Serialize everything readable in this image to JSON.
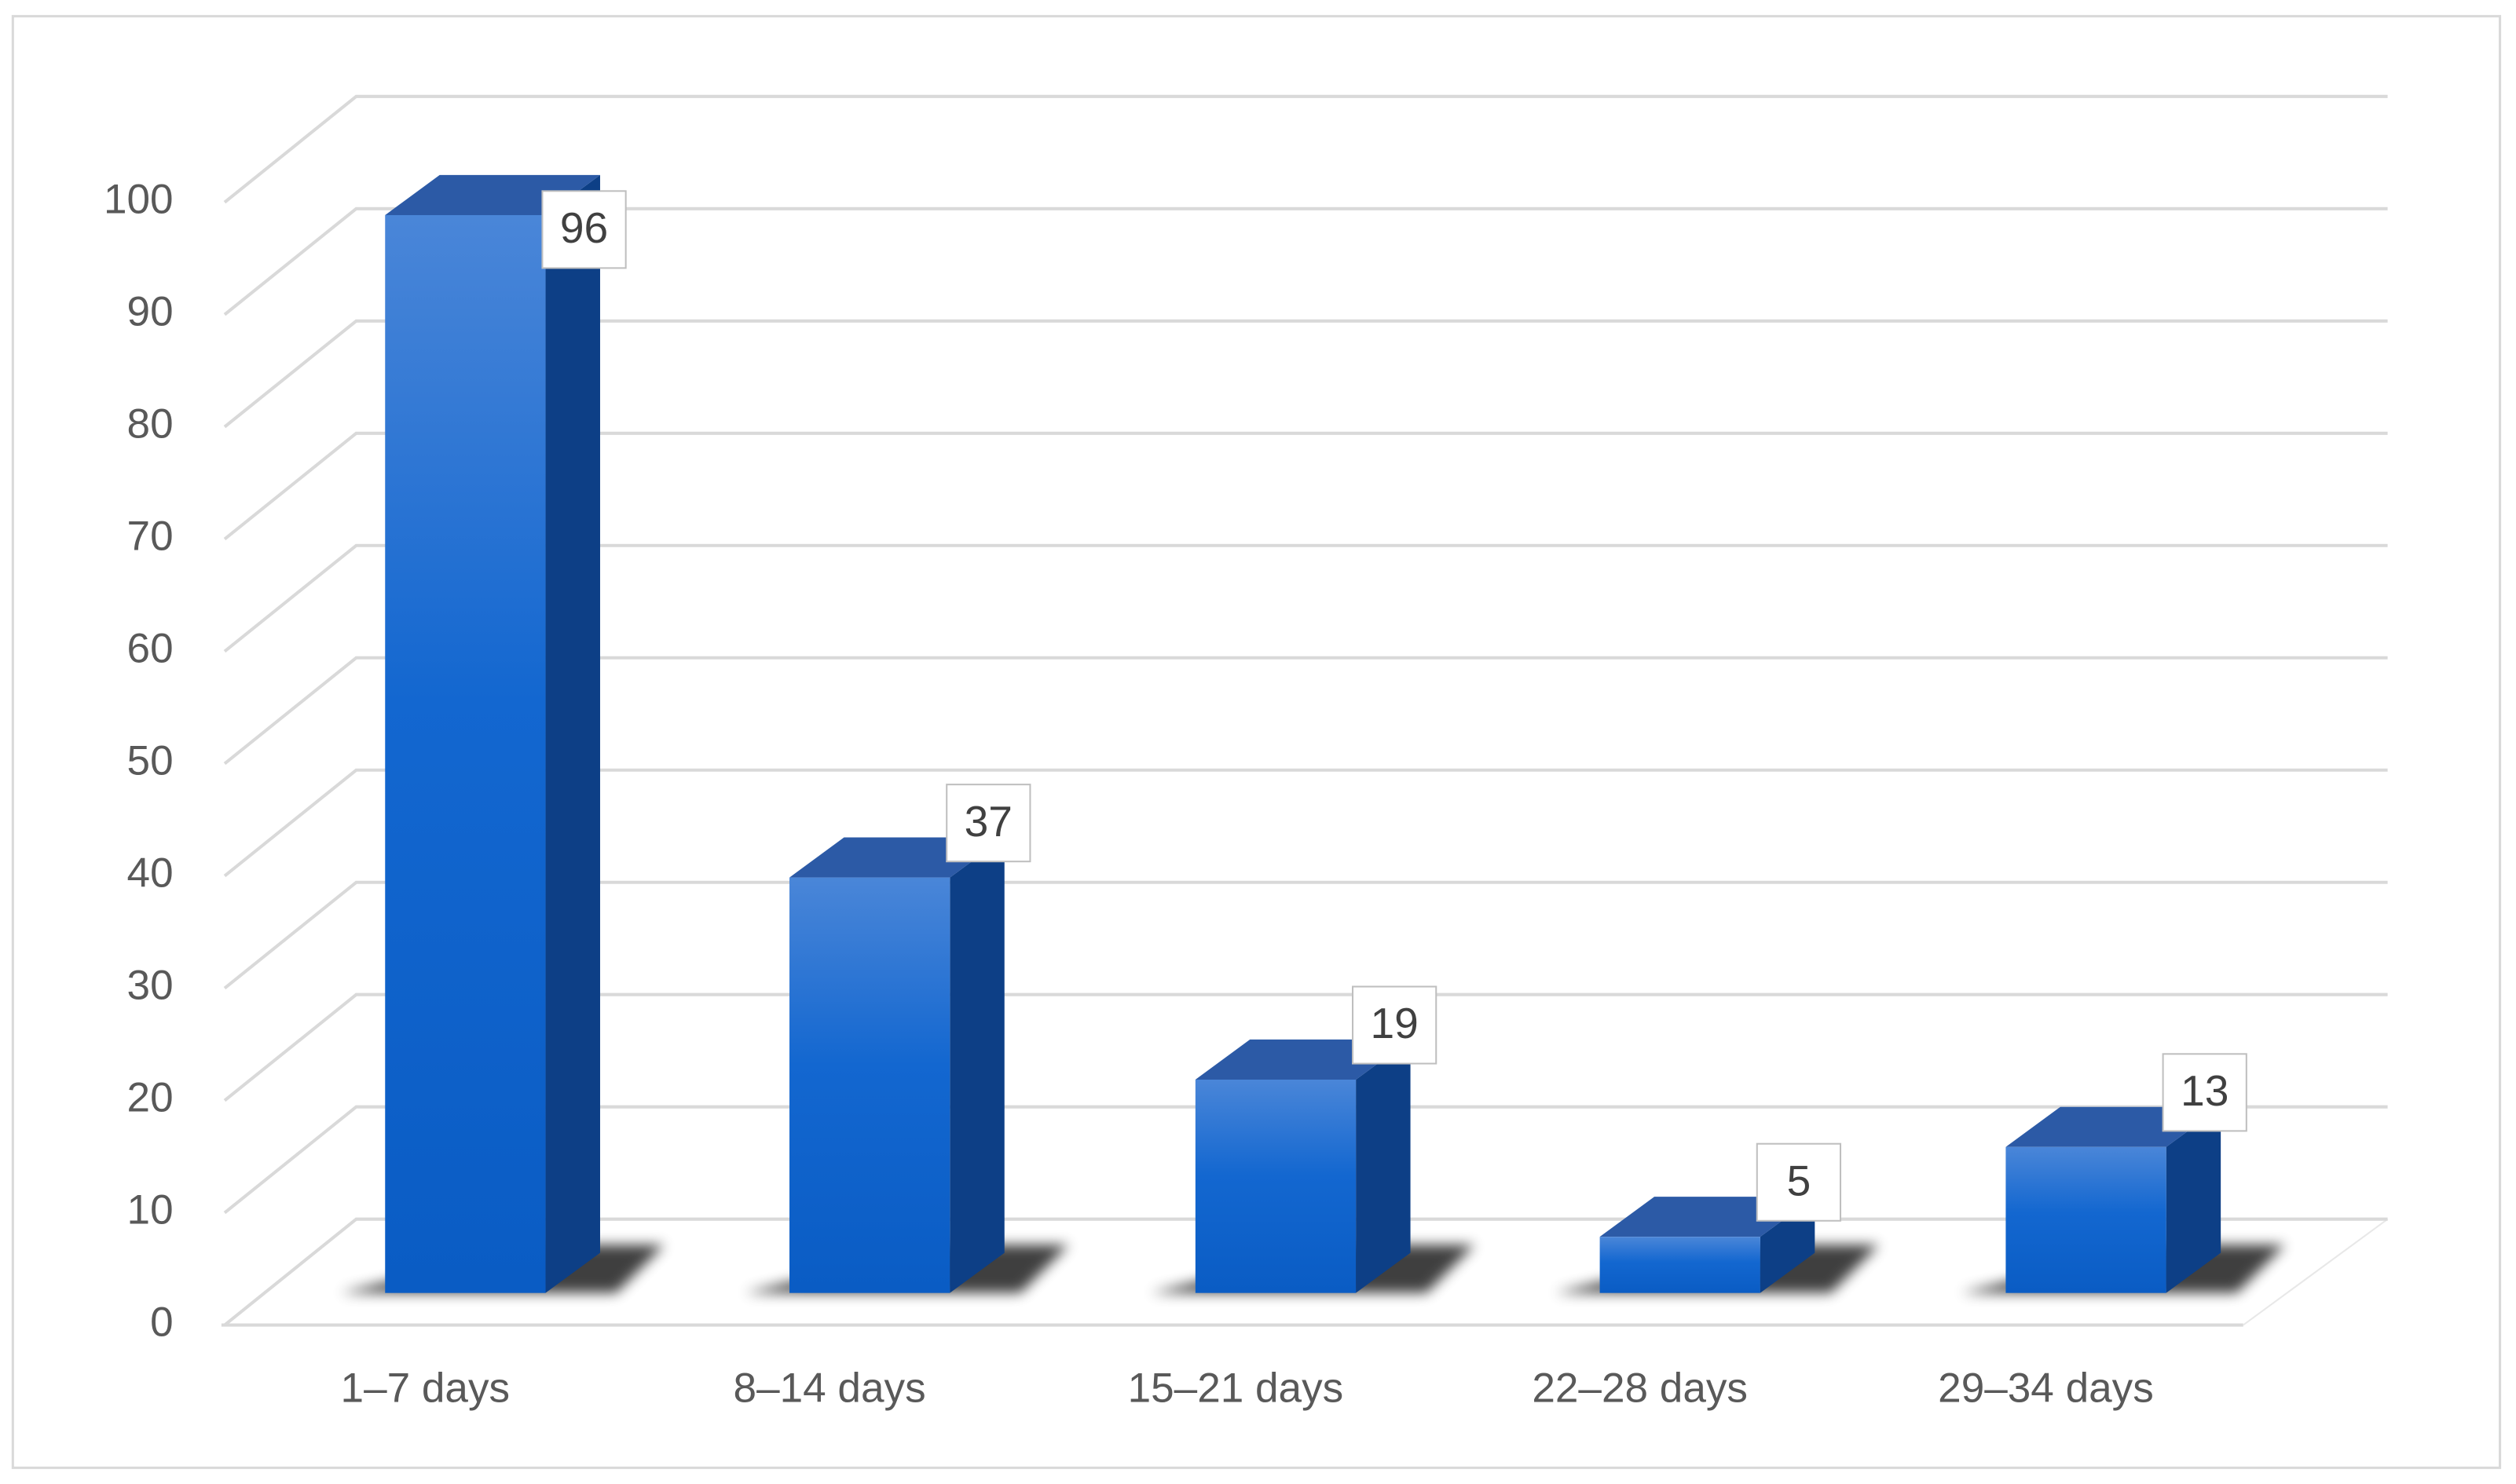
{
  "chart_data": {
    "type": "bar3d",
    "categories": [
      "1–7 days",
      "8–14 days",
      "15–21 days",
      "22–28 days",
      "29–34 days"
    ],
    "values": [
      96,
      37,
      19,
      5,
      13
    ],
    "color": "#1666d0",
    "ylim": [
      0,
      100
    ],
    "yticks": [
      0,
      10,
      20,
      30,
      40,
      50,
      60,
      70,
      80,
      90,
      100
    ],
    "grid": true,
    "data_labels": true
  }
}
